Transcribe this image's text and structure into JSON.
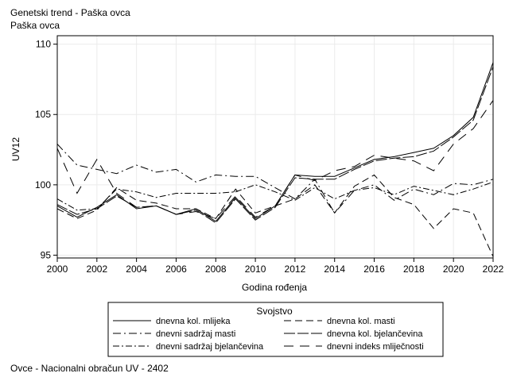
{
  "header": {
    "title": "Genetski trend - Paška ovca",
    "subtitle": "Paška ovca"
  },
  "footnote": "Ovce - Nacionalni obračun UV - 2402",
  "chart_data": {
    "type": "line",
    "xlabel": "Godina rođenja",
    "ylabel": "UV12",
    "xlim": [
      2000,
      2022
    ],
    "ylim": [
      94.8,
      110.6
    ],
    "xticks": [
      "2000",
      "2002",
      "2004",
      "2006",
      "2008",
      "2010",
      "2012",
      "2014",
      "2016",
      "2018",
      "2020",
      "2022"
    ],
    "yticks": [
      "95",
      "100",
      "105",
      "110"
    ],
    "grid": true,
    "legend": {
      "title": "Svojstvo",
      "placement": "bottom"
    },
    "x": [
      2000,
      2001,
      2002,
      2003,
      2004,
      2005,
      2006,
      2007,
      2008,
      2009,
      2010,
      2011,
      2012,
      2013,
      2014,
      2015,
      2016,
      2017,
      2018,
      2019,
      2020,
      2021,
      2022
    ],
    "series": [
      {
        "name": "dnevna kol. mlijeka",
        "dash": "",
        "values": [
          98.5,
          97.7,
          98.4,
          99.3,
          98.3,
          98.5,
          97.9,
          98.3,
          97.4,
          99.1,
          97.6,
          98.5,
          100.7,
          100.6,
          100.6,
          101.2,
          101.8,
          102.0,
          102.3,
          102.6,
          103.5,
          104.8,
          108.7
        ]
      },
      {
        "name": "dnevna kol. masti",
        "dash": "9 5",
        "values": [
          98.3,
          97.6,
          98.2,
          99.8,
          98.9,
          98.7,
          98.3,
          98.3,
          97.6,
          99.7,
          98.0,
          98.5,
          99.0,
          100.0,
          98.0,
          99.9,
          100.7,
          99.1,
          98.6,
          96.9,
          98.3,
          98.0,
          94.9
        ]
      },
      {
        "name": "dnevni sadržaj masti",
        "dash": "10 4 2 4",
        "values": [
          102.9,
          101.4,
          101.1,
          100.8,
          101.4,
          100.9,
          101.1,
          100.2,
          100.7,
          100.6,
          100.6,
          99.8,
          99.0,
          100.4,
          98.0,
          99.6,
          100.0,
          98.9,
          99.7,
          99.3,
          100.1,
          100.0,
          100.4
        ]
      },
      {
        "name": "dnevna kol. bjelančevina",
        "dash": "14 3",
        "values": [
          98.6,
          97.9,
          98.3,
          99.2,
          98.4,
          98.5,
          97.9,
          98.2,
          97.3,
          99.0,
          97.5,
          98.4,
          100.5,
          100.4,
          100.4,
          101.1,
          101.7,
          101.9,
          102.0,
          102.4,
          103.4,
          104.6,
          108.4
        ]
      },
      {
        "name": "dnevni sadržaj bjelančevina",
        "dash": "8 3 2 3",
        "values": [
          99.0,
          98.2,
          98.3,
          99.7,
          99.5,
          99.1,
          99.4,
          99.4,
          99.4,
          99.5,
          100.0,
          99.5,
          98.9,
          99.8,
          99.0,
          99.6,
          99.8,
          99.3,
          99.9,
          99.6,
          99.3,
          99.7,
          100.2
        ]
      },
      {
        "name": "dnevni indeks mliječnosti",
        "dash": "12 8",
        "values": [
          102.6,
          99.4,
          101.8,
          99.4,
          98.4,
          98.5,
          97.9,
          98.1,
          97.6,
          99.2,
          97.7,
          98.5,
          100.7,
          100.3,
          101.0,
          101.3,
          102.1,
          101.9,
          101.7,
          101.0,
          102.9,
          104.0,
          106.0
        ]
      }
    ]
  }
}
